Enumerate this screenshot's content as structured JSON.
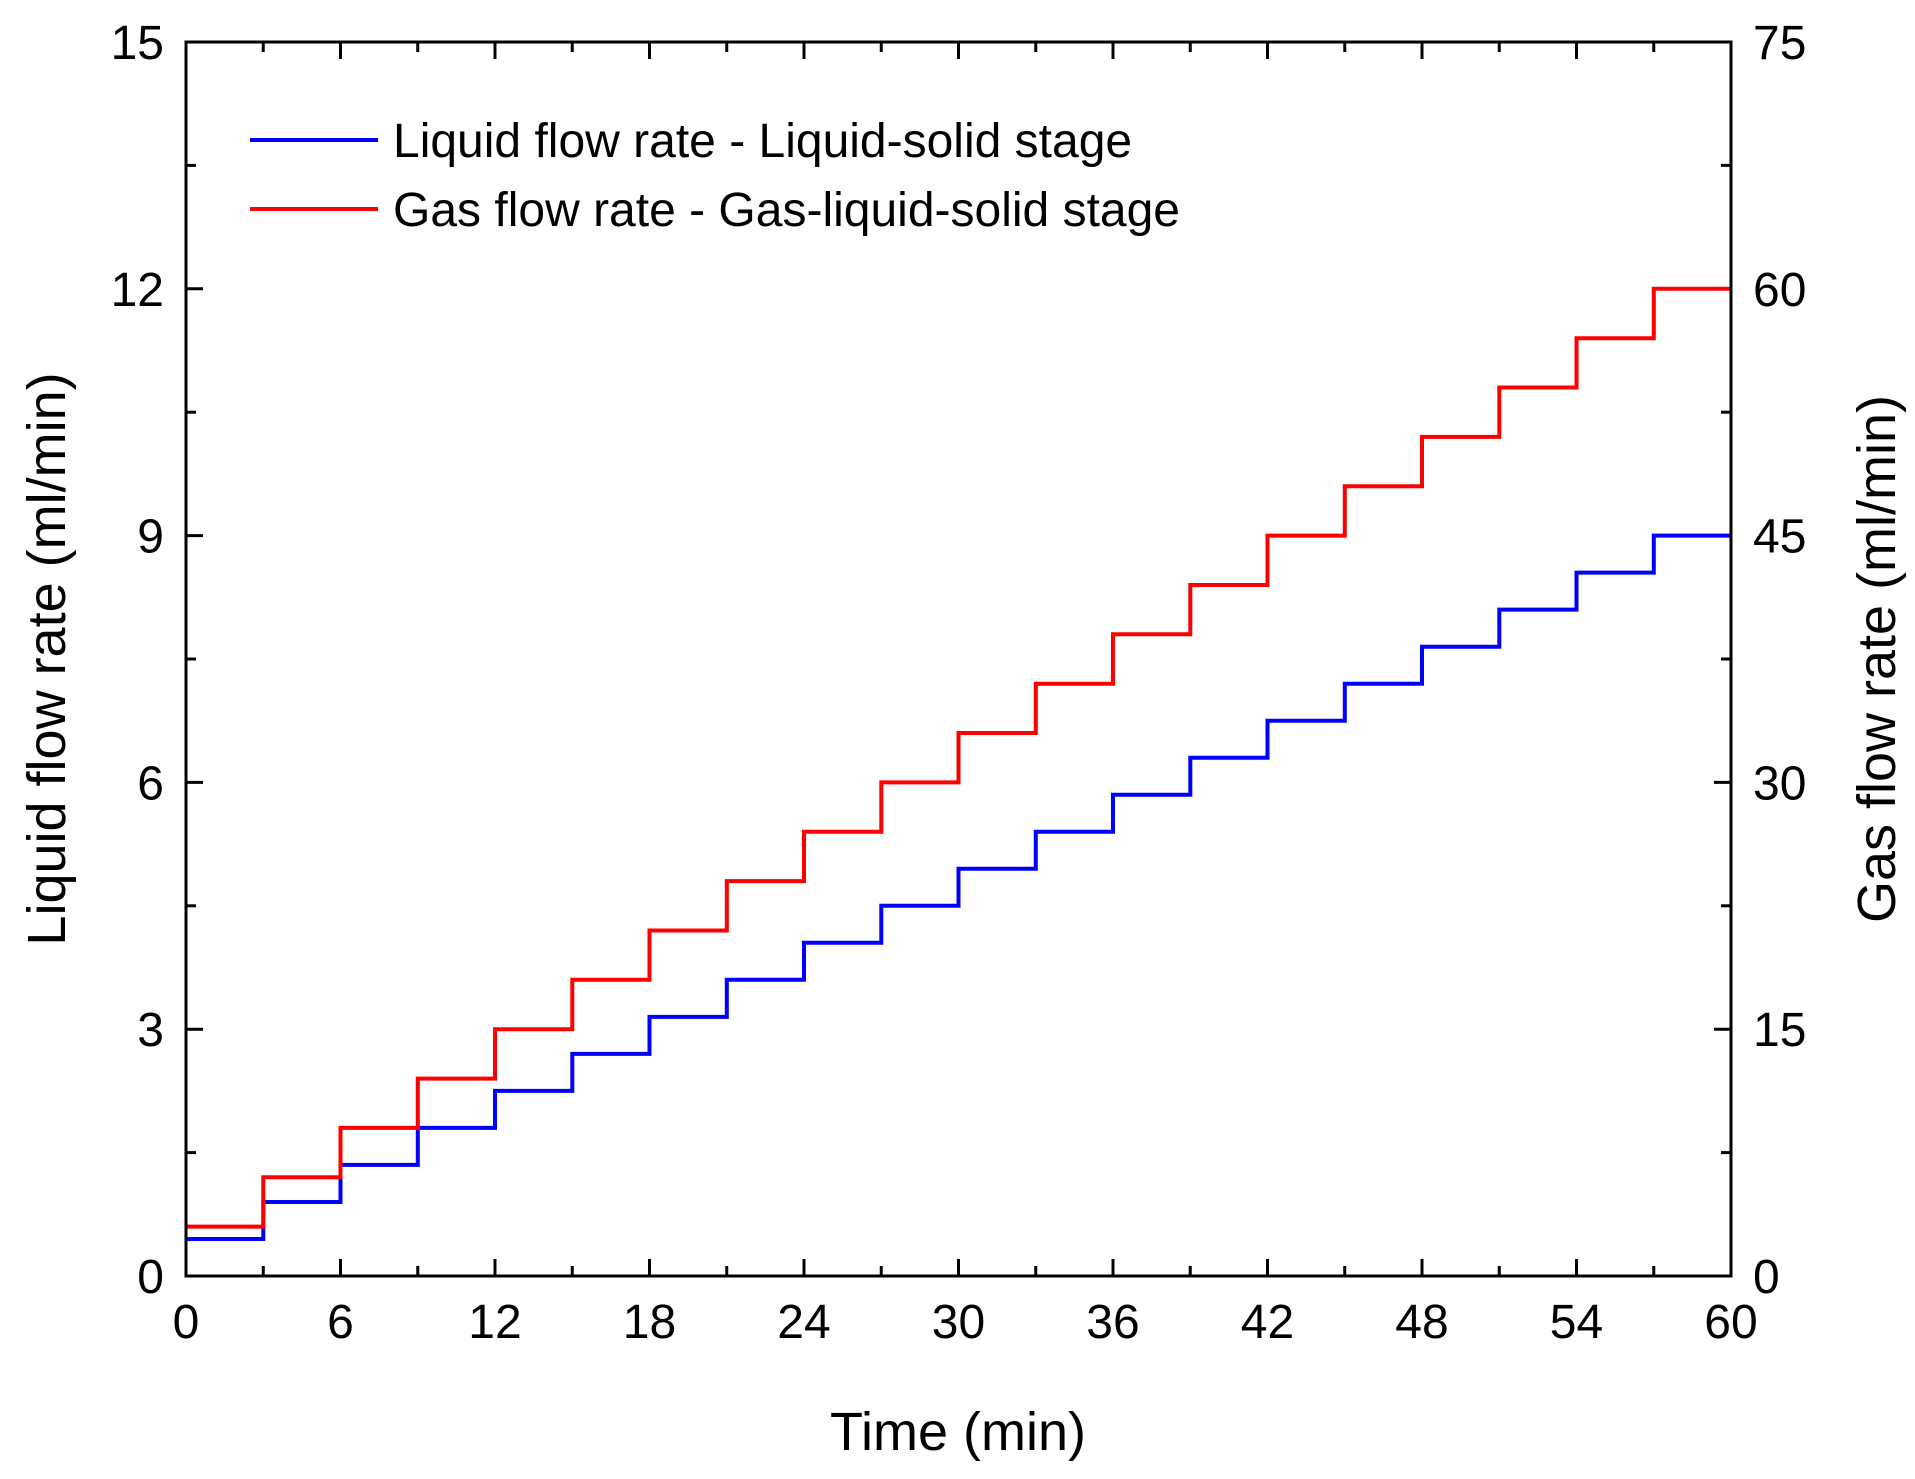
{
  "chart_data": {
    "type": "line",
    "xlabel": "Time (min)",
    "ylabel_left": "Liquid flow rate (ml/min)",
    "ylabel_right": "Gas flow rate (ml/min)",
    "xlim": [
      0,
      60
    ],
    "ylim_left": [
      0,
      15
    ],
    "ylim_right": [
      0,
      75
    ],
    "grid": false,
    "legend_position": "top-left",
    "x_ticks": [
      "0",
      "6",
      "12",
      "18",
      "24",
      "30",
      "36",
      "42",
      "48",
      "54",
      "60"
    ],
    "y_left_ticks": [
      "0",
      "3",
      "6",
      "9",
      "12",
      "15"
    ],
    "y_right_ticks": [
      "0",
      "15",
      "30",
      "45",
      "60",
      "75"
    ],
    "series": [
      {
        "name": "Liquid flow rate - Liquid-solid stage",
        "axis": "left",
        "color": "#0000ff",
        "step_width_min": 3,
        "values": [
          0.45,
          0.9,
          1.35,
          1.8,
          2.25,
          2.7,
          3.15,
          3.6,
          4.05,
          4.5,
          4.95,
          5.4,
          5.85,
          6.3,
          6.75,
          7.2,
          7.65,
          8.1,
          8.55,
          9.0
        ]
      },
      {
        "name": "Gas flow rate - Gas-liquid-solid stage",
        "axis": "right",
        "color": "#ff0000",
        "step_width_min": 3,
        "values": [
          3,
          6,
          9,
          12,
          15,
          18,
          21,
          24,
          27,
          30,
          33,
          36,
          39,
          42,
          45,
          48,
          51,
          54,
          57,
          60
        ]
      }
    ]
  }
}
